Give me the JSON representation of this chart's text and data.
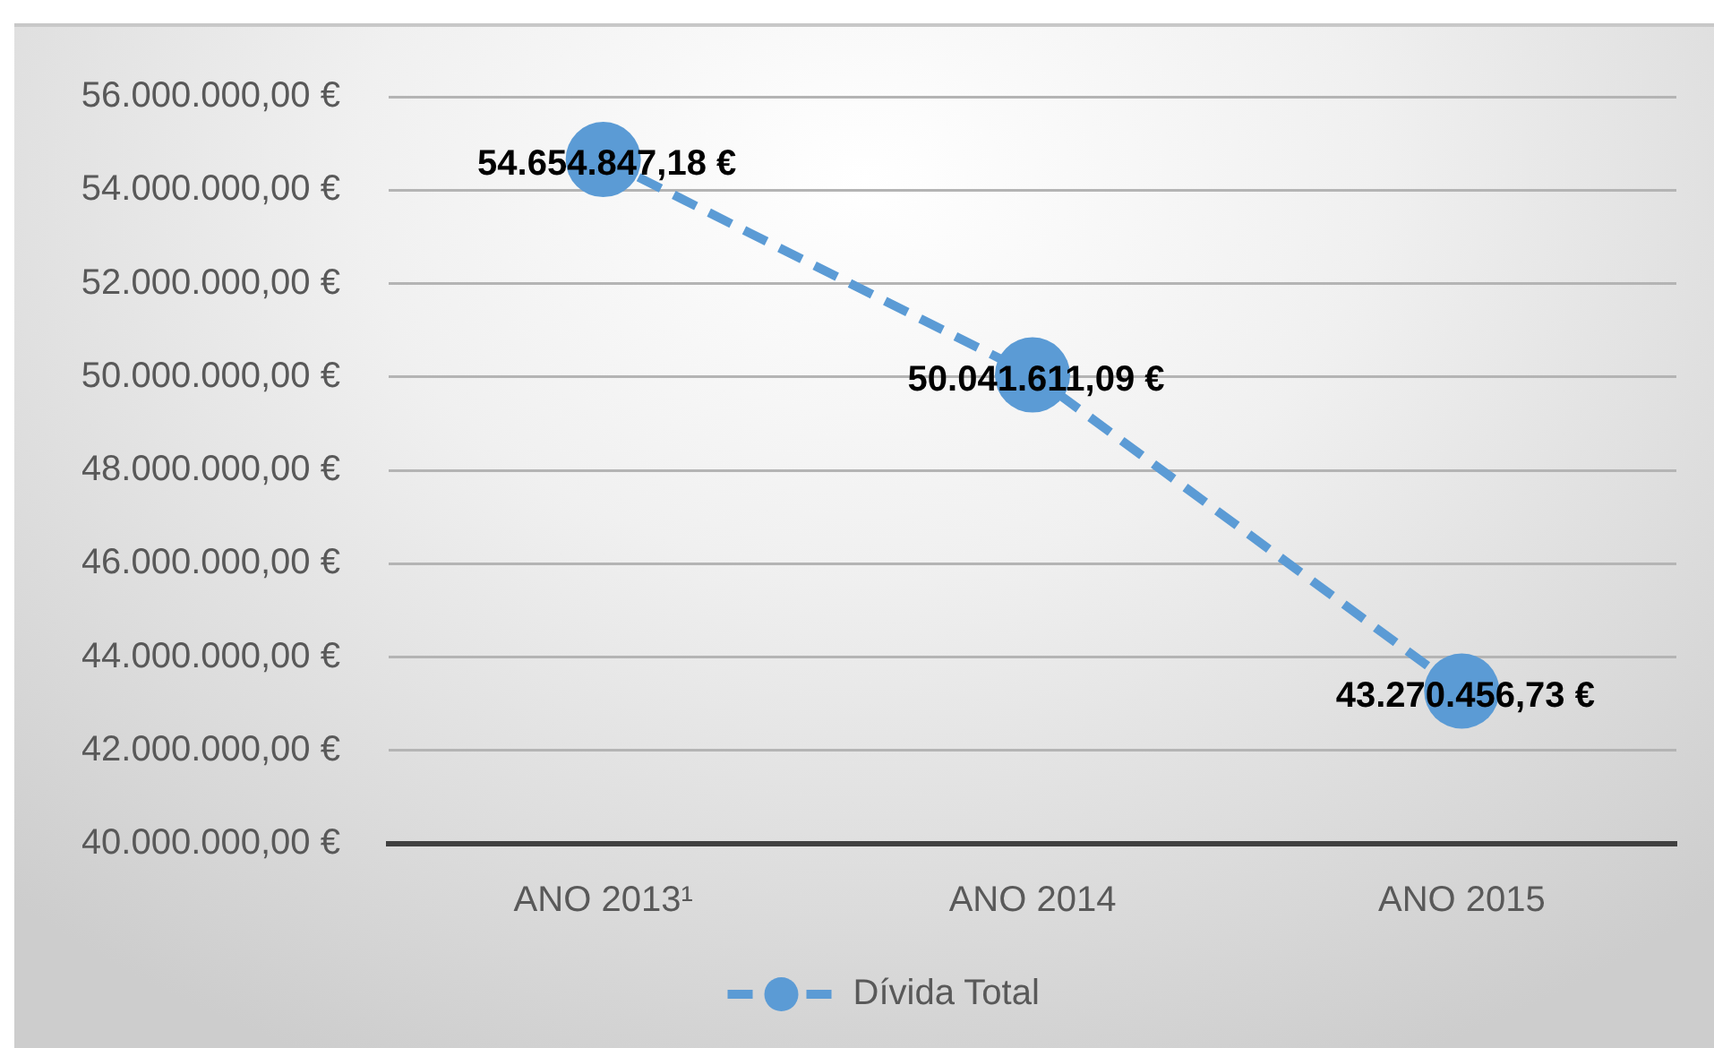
{
  "chart_data": {
    "type": "line",
    "categories": [
      "ANO 2013¹",
      "ANO 2014",
      "ANO 2015"
    ],
    "series": [
      {
        "name": "Dívida Total",
        "color": "#5b9bd5",
        "values": [
          54654847.18,
          50041611.09,
          43270456.73
        ],
        "value_labels": [
          "54.654.847,18 €",
          "50.041.611,09 €",
          "43.270.456,73 €"
        ]
      }
    ],
    "ylim": [
      40000000,
      56000000
    ],
    "yticks": [
      {
        "value": 40000000,
        "label": "40.000.000,00 €"
      },
      {
        "value": 42000000,
        "label": "42.000.000,00 €"
      },
      {
        "value": 44000000,
        "label": "44.000.000,00 €"
      },
      {
        "value": 46000000,
        "label": "46.000.000,00 €"
      },
      {
        "value": 48000000,
        "label": "48.000.000,00 €"
      },
      {
        "value": 50000000,
        "label": "50.000.000,00 €"
      },
      {
        "value": 52000000,
        "label": "52.000.000,00 €"
      },
      {
        "value": 54000000,
        "label": "54.000.000,00 €"
      },
      {
        "value": 56000000,
        "label": "56.000.000,00 €"
      }
    ],
    "grid": "y",
    "legend": "bottom",
    "marker": "circle",
    "line_style": "dashed"
  }
}
